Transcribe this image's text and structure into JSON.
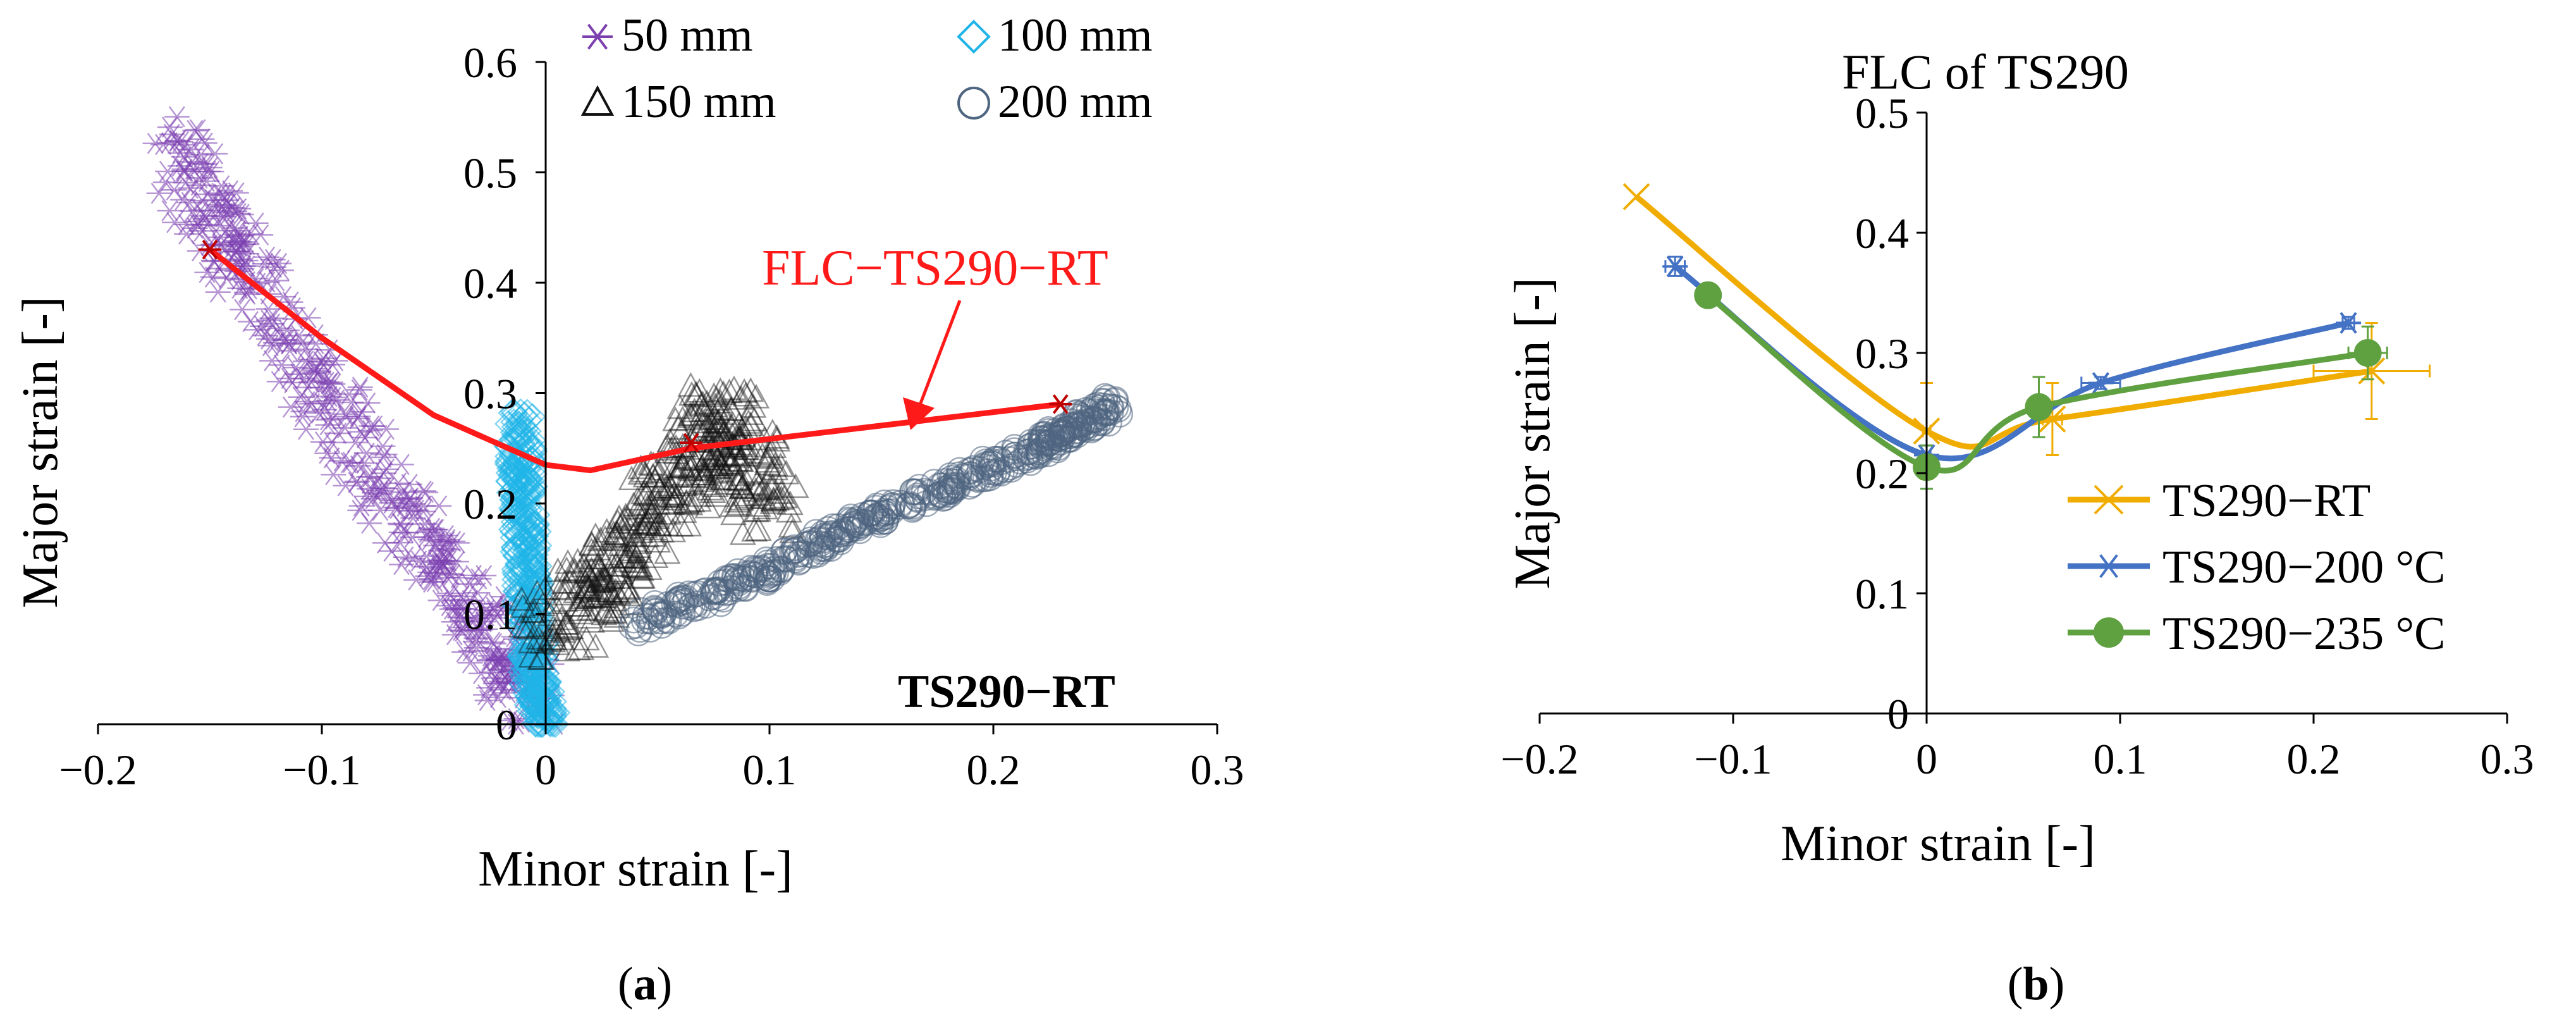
{
  "panels": [
    {
      "label_open": "(",
      "label_letter": "a",
      "label_close": ")"
    },
    {
      "label_open": "(",
      "label_letter": "b",
      "label_close": ")"
    }
  ],
  "chart_data": [
    {
      "type": "scatter",
      "title": "",
      "xlabel": "Minor strain [-]",
      "ylabel": "Major strain [-]",
      "xlim": [
        -0.2,
        0.3
      ],
      "ylim": [
        0,
        0.6
      ],
      "xticks": [
        -0.2,
        -0.1,
        0,
        0.1,
        0.2,
        0.3
      ],
      "xtick_labels": [
        "−0.2",
        "−0.1",
        "0",
        "0.1",
        "0.2",
        "0.3"
      ],
      "yticks": [
        0,
        0.1,
        0.2,
        0.3,
        0.4,
        0.5,
        0.6
      ],
      "ytick_labels": [
        "0",
        "0.1",
        "0.2",
        "0.3",
        "0.4",
        "0.5",
        "0.6"
      ],
      "legend_position": "top",
      "annotation": "TS290−RT",
      "series": [
        {
          "name": "50 mm",
          "marker": "asterisk",
          "color": "#7b3fb0",
          "band": [
            [
              -0.168,
              0.53
            ],
            [
              -0.14,
              0.43
            ],
            [
              -0.1,
              0.3
            ],
            [
              -0.06,
              0.18
            ],
            [
              -0.03,
              0.09
            ],
            [
              -0.005,
              0.02
            ]
          ],
          "spread": 0.035
        },
        {
          "name": "100 mm",
          "marker": "diamond",
          "color": "#1fb4e8",
          "band": [
            [
              -0.012,
              0.28
            ],
            [
              -0.01,
              0.2
            ],
            [
              -0.008,
              0.12
            ],
            [
              -0.005,
              0.05
            ],
            [
              0,
              0
            ]
          ],
          "spread": 0.012
        },
        {
          "name": "150 mm",
          "marker": "triangle",
          "color": "#111111",
          "band": [
            [
              0.0,
              0.08
            ],
            [
              0.03,
              0.14
            ],
            [
              0.06,
              0.22
            ],
            [
              0.08,
              0.28
            ],
            [
              0.1,
              0.19
            ]
          ],
          "spread": 0.04
        },
        {
          "name": "200 mm",
          "marker": "circle",
          "color": "#4e6580",
          "band": [
            [
              0.04,
              0.09
            ],
            [
              0.1,
              0.14
            ],
            [
              0.16,
              0.2
            ],
            [
              0.22,
              0.25
            ],
            [
              0.255,
              0.29
            ]
          ],
          "spread": 0.012
        }
      ],
      "flc": {
        "name": "FLC−TS290−RT",
        "color": "#ff1a1a",
        "points": [
          [
            -0.15,
            0.43
          ],
          [
            -0.1,
            0.35
          ],
          [
            -0.05,
            0.28
          ],
          [
            0,
            0.235
          ],
          [
            0.02,
            0.23
          ],
          [
            0.065,
            0.25
          ],
          [
            0.23,
            0.29
          ]
        ],
        "markers": [
          [
            -0.15,
            0.43
          ],
          [
            0.065,
            0.255
          ],
          [
            0.23,
            0.29
          ]
        ]
      }
    },
    {
      "type": "line",
      "title": "FLC of TS290",
      "xlabel": "Minor strain [-]",
      "ylabel": "Major strain [-]",
      "xlim": [
        -0.2,
        0.3
      ],
      "ylim": [
        0,
        0.5
      ],
      "xticks": [
        -0.2,
        -0.1,
        0,
        0.1,
        0.2,
        0.3
      ],
      "xtick_labels": [
        "−0.2",
        "−0.1",
        "0",
        "0.1",
        "0.2",
        "0.3"
      ],
      "yticks": [
        0,
        0.1,
        0.2,
        0.3,
        0.4,
        0.5
      ],
      "ytick_labels": [
        "0",
        "0.1",
        "0.2",
        "0.3",
        "0.4",
        "0.5"
      ],
      "legend_position": "bottom-right",
      "series": [
        {
          "name": "TS290−RT",
          "color": "#f0ac00",
          "marker": "x",
          "points": [
            [
              -0.15,
              0.43
            ],
            [
              0,
              0.235
            ],
            [
              0.065,
              0.245
            ],
            [
              0.23,
              0.285
            ]
          ],
          "xerr": [
            0,
            0.002,
            0.005,
            0.03
          ],
          "yerr": [
            0,
            0.04,
            0.03,
            0.04
          ]
        },
        {
          "name": "TS290−200 °C",
          "color": "#4472c4",
          "marker": "asterisk",
          "points": [
            [
              -0.13,
              0.372
            ],
            [
              0,
              0.215
            ],
            [
              0.09,
              0.275
            ],
            [
              0.218,
              0.325
            ]
          ],
          "xerr": [
            0.005,
            0.002,
            0.01,
            0.003
          ],
          "yerr": [
            0.008,
            0.008,
            0.005,
            0.005
          ]
        },
        {
          "name": "TS290−235 °C",
          "color": "#5fa041",
          "marker": "circle",
          "points": [
            [
              -0.113,
              0.348
            ],
            [
              0,
              0.205
            ],
            [
              0.058,
              0.255
            ],
            [
              0.228,
              0.3
            ]
          ],
          "xerr": [
            0,
            0.002,
            0.004,
            0.01
          ],
          "yerr": [
            0,
            0.018,
            0.025,
            0.022
          ]
        }
      ]
    }
  ]
}
